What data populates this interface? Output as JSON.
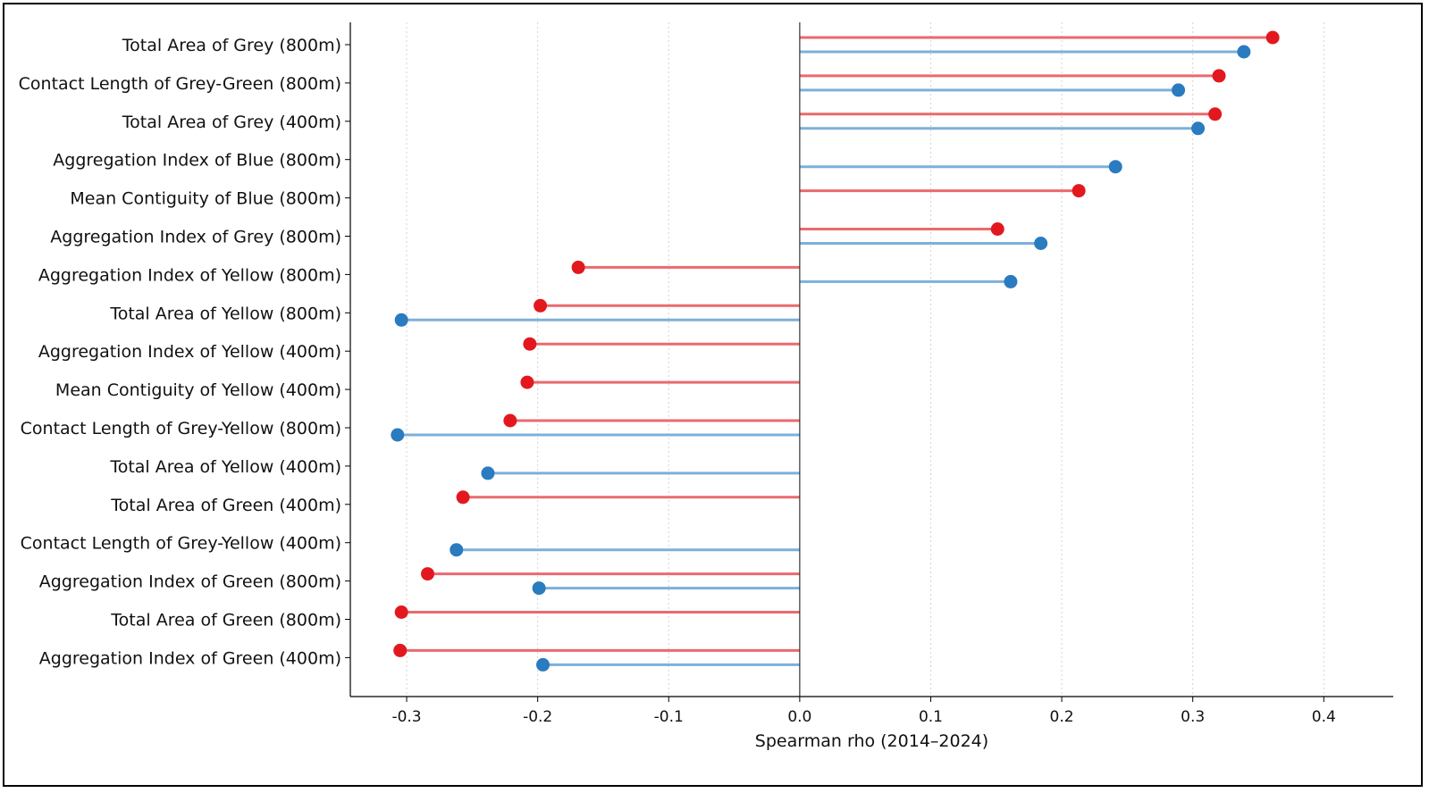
{
  "chart_data": {
    "type": "lollipop",
    "title": "",
    "xlabel": "Spearman rho (2014–2024)",
    "ylabel": "",
    "xlim": [
      -0.343,
      0.453
    ],
    "xticks": [
      -0.3,
      -0.2,
      -0.1,
      0.0,
      0.1,
      0.2,
      0.3,
      0.4
    ],
    "xtick_labels": [
      "-0.3",
      "-0.2",
      "-0.1",
      "0.0",
      "0.1",
      "0.2",
      "0.3",
      "0.4"
    ],
    "grid": "vertical dotted",
    "legend": "none",
    "categories": [
      "Total Area of Grey (800m)",
      "Contact Length of Grey-Green (800m)",
      "Total Area of Grey (400m)",
      "Aggregation Index of Blue (800m)",
      "Mean Contiguity of Blue (800m)",
      "Aggregation Index of Grey (800m)",
      "Aggregation Index of Yellow (800m)",
      "Total Area of Yellow (800m)",
      "Aggregation Index of Yellow (400m)",
      "Mean Contiguity of Yellow (400m)",
      "Contact Length of Grey-Yellow (800m)",
      "Total Area of Yellow (400m)",
      "Total Area of Green (400m)",
      "Contact Length of Grey-Yellow (400m)",
      "Aggregation Index of Green (800m)",
      "Total Area of Green (800m)",
      "Aggregation Index of Green (400m)"
    ],
    "series": [
      {
        "color": "#e3181f",
        "line_color": "#ea6a6d",
        "values": [
          0.361,
          0.32,
          0.317,
          null,
          0.213,
          0.151,
          -0.169,
          -0.198,
          -0.206,
          -0.208,
          -0.221,
          null,
          -0.257,
          null,
          -0.284,
          -0.304,
          -0.305
        ]
      },
      {
        "color": "#2a7bbf",
        "line_color": "#7cb0da",
        "values": [
          0.339,
          0.289,
          0.304,
          0.241,
          null,
          0.184,
          0.161,
          -0.304,
          null,
          null,
          -0.307,
          -0.238,
          null,
          -0.262,
          -0.199,
          null,
          -0.196
        ]
      }
    ]
  }
}
